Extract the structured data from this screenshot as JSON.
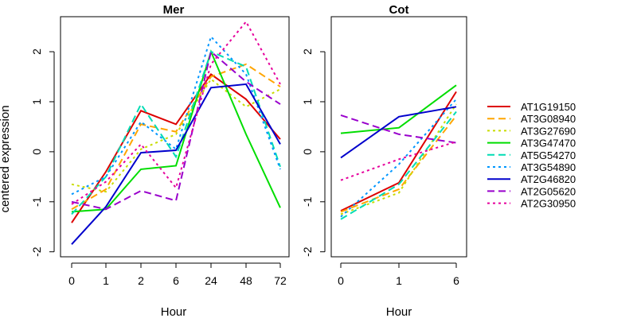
{
  "ylabel": "centered expression",
  "colors": {
    "AT1G19150": "#dd0000",
    "AT3G08940": "#ffa500",
    "AT3G27690": "#c8dc00",
    "AT3G47470": "#00dd00",
    "AT5G54270": "#00dcb4",
    "AT3G54890": "#0096ff",
    "AT2G46820": "#0000cc",
    "AT2G05620": "#9900cc",
    "AT2G30950": "#e6009c"
  },
  "legend": [
    {
      "name": "AT1G19150",
      "dash": "solid"
    },
    {
      "name": "AT3G08940",
      "dash": "dashed"
    },
    {
      "name": "AT3G27690",
      "dash": "dotted"
    },
    {
      "name": "AT3G47470",
      "dash": "solid"
    },
    {
      "name": "AT5G54270",
      "dash": "dashed"
    },
    {
      "name": "AT3G54890",
      "dash": "dotted"
    },
    {
      "name": "AT2G46820",
      "dash": "solid"
    },
    {
      "name": "AT2G05620",
      "dash": "dashed"
    },
    {
      "name": "AT2G30950",
      "dash": "dotted"
    }
  ],
  "chart_data": [
    {
      "type": "line",
      "title": "Mer",
      "xlabel": "Hour",
      "categories": [
        "0",
        "1",
        "2",
        "6",
        "24",
        "48",
        "72"
      ],
      "yticks": [
        -2,
        -1,
        0,
        1,
        2
      ],
      "ylim": [
        -2.1,
        2.7
      ],
      "series": [
        {
          "name": "AT1G19150",
          "values": [
            -1.42,
            -0.4,
            0.82,
            0.55,
            1.55,
            1.05,
            0.25
          ]
        },
        {
          "name": "AT3G08940",
          "values": [
            -1.15,
            -0.75,
            0.55,
            0.4,
            1.5,
            1.75,
            1.3
          ]
        },
        {
          "name": "AT3G27690",
          "values": [
            -0.65,
            -0.8,
            0.05,
            0.35,
            1.45,
            0.9,
            1.25
          ]
        },
        {
          "name": "AT3G47470",
          "values": [
            -1.2,
            -1.15,
            -0.35,
            -0.28,
            2.0,
            0.35,
            -1.12
          ]
        },
        {
          "name": "AT5G54270",
          "values": [
            -1.25,
            -0.5,
            0.95,
            -0.1,
            2.0,
            1.7,
            -0.3
          ]
        },
        {
          "name": "AT3G54890",
          "values": [
            -0.85,
            -0.5,
            0.6,
            0.05,
            2.3,
            1.55,
            -0.35
          ]
        },
        {
          "name": "AT2G46820",
          "values": [
            -1.85,
            -1.1,
            -0.02,
            0.03,
            1.28,
            1.35,
            0.15
          ]
        },
        {
          "name": "AT2G05620",
          "values": [
            -1.0,
            -1.15,
            -0.78,
            -0.98,
            2.0,
            1.4,
            0.95
          ]
        },
        {
          "name": "AT2G30950",
          "values": [
            -1.05,
            -0.6,
            0.15,
            -0.72,
            1.75,
            2.6,
            1.35
          ]
        }
      ]
    },
    {
      "type": "line",
      "title": "Cot",
      "xlabel": "Hour",
      "categories": [
        "0",
        "1",
        "6"
      ],
      "yticks": [
        -2,
        -1,
        0,
        1,
        2
      ],
      "ylim": [
        -2.1,
        2.7
      ],
      "series": [
        {
          "name": "AT1G19150",
          "values": [
            -1.18,
            -0.62,
            1.2
          ]
        },
        {
          "name": "AT3G08940",
          "values": [
            -1.2,
            -0.75,
            0.72
          ]
        },
        {
          "name": "AT3G27690",
          "values": [
            -1.25,
            -0.82,
            0.95
          ]
        },
        {
          "name": "AT3G47470",
          "values": [
            0.37,
            0.48,
            1.33
          ]
        },
        {
          "name": "AT5G54270",
          "values": [
            -1.35,
            -0.65,
            0.8
          ]
        },
        {
          "name": "AT3G54890",
          "values": [
            -1.3,
            -0.25,
            1.05
          ]
        },
        {
          "name": "AT2G46820",
          "values": [
            -0.12,
            0.7,
            0.9
          ]
        },
        {
          "name": "AT2G05620",
          "values": [
            0.73,
            0.35,
            0.18
          ]
        },
        {
          "name": "AT2G30950",
          "values": [
            -0.57,
            -0.15,
            0.2
          ]
        }
      ]
    }
  ]
}
